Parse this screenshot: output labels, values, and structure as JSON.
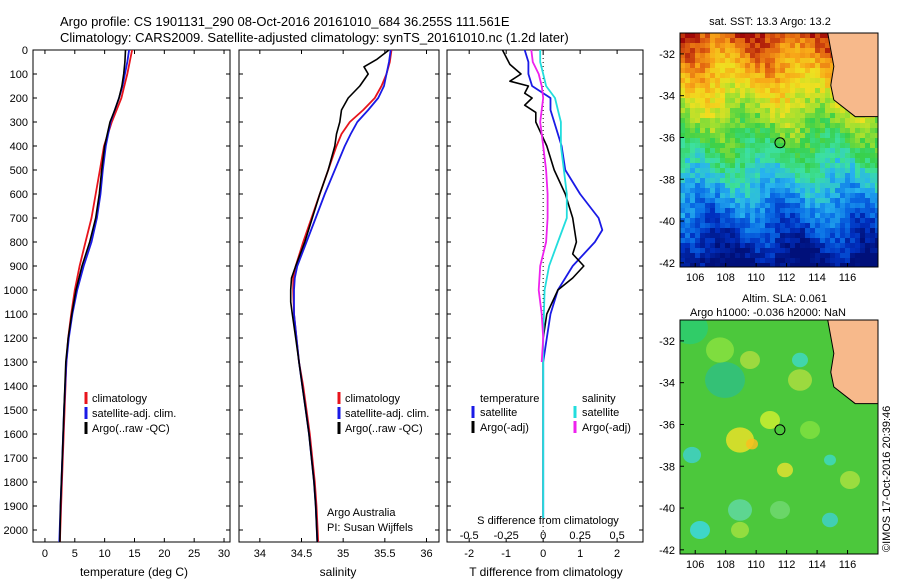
{
  "header": {
    "line1": "Argo profile: CS 1901131_290 08-Oct-2016 20161010_684 36.255S 111.561E",
    "line2": "Climatology: CARS2009. Satellite-adjusted climatology: synTS_20161010.nc (1.2d later)"
  },
  "colors": {
    "climatology": "#e8141c",
    "satellite": "#1a1ae6",
    "argo": "#000000",
    "cyan": "#22dddd",
    "magenta": "#ee22ee",
    "land": "#f7b98b"
  },
  "depth_axis": {
    "ticks": [
      0,
      100,
      200,
      300,
      400,
      500,
      600,
      700,
      800,
      900,
      1000,
      1100,
      1200,
      1300,
      1400,
      1500,
      1600,
      1700,
      1800,
      1900,
      2000
    ],
    "range": [
      0,
      2050
    ],
    "inverted": true
  },
  "chart_data": [
    {
      "id": "temperature",
      "type": "line",
      "xlabel": "temperature (deg C)",
      "xlim": [
        -2,
        31
      ],
      "xticks": [
        0,
        5,
        10,
        15,
        20,
        25,
        30
      ],
      "legend": [
        "climatology",
        "satellite-adj. clim.",
        "Argo(..raw -QC)"
      ],
      "legend_position": "lower-left",
      "series": [
        {
          "name": "climatology",
          "color_key": "climatology",
          "depth": [
            0,
            50,
            100,
            150,
            200,
            250,
            300,
            400,
            500,
            600,
            700,
            800,
            900,
            1000,
            1100,
            1200,
            1300,
            1500,
            1700,
            1900,
            2050
          ],
          "values": [
            14.6,
            14.2,
            13.8,
            13.3,
            12.8,
            12.0,
            11.2,
            9.9,
            9.2,
            8.5,
            7.8,
            6.8,
            5.8,
            5.0,
            4.4,
            3.9,
            3.6,
            3.3,
            3.0,
            2.7,
            2.5
          ]
        },
        {
          "name": "satellite-adj. clim.",
          "color_key": "satellite",
          "depth": [
            0,
            50,
            100,
            150,
            200,
            250,
            300,
            400,
            500,
            600,
            700,
            800,
            900,
            1000,
            1100,
            1200,
            1300,
            1500,
            1700,
            1900,
            2050
          ],
          "values": [
            14.1,
            13.8,
            13.4,
            13.0,
            12.4,
            11.7,
            11.0,
            10.2,
            9.7,
            9.3,
            8.7,
            7.8,
            6.5,
            5.4,
            4.6,
            4.0,
            3.6,
            3.2,
            2.9,
            2.6,
            2.4
          ]
        },
        {
          "name": "Argo(..raw -QC)",
          "color_key": "argo",
          "depth": [
            0,
            50,
            100,
            150,
            200,
            250,
            300,
            400,
            500,
            600,
            700,
            800,
            900,
            1000,
            1100,
            1200,
            1300,
            1500,
            1700,
            1900,
            2050
          ],
          "values": [
            13.5,
            13.4,
            13.2,
            12.9,
            12.4,
            11.7,
            10.9,
            10.0,
            9.5,
            9.1,
            8.5,
            7.5,
            6.2,
            5.2,
            4.5,
            3.9,
            3.5,
            3.2,
            2.9,
            2.6,
            2.5
          ]
        }
      ]
    },
    {
      "id": "salinity",
      "type": "line",
      "xlabel": "salinity",
      "xlim": [
        33.75,
        36.15
      ],
      "xticks": [
        34,
        34.5,
        35,
        35.5,
        36
      ],
      "legend": [
        "climatology",
        "satellite-adj. clim.",
        "Argo(..raw -QC)"
      ],
      "legend_position": "lower-right",
      "annotation": [
        "Argo Australia",
        "PI: Susan Wijffels"
      ],
      "series": [
        {
          "name": "climatology",
          "color_key": "climatology",
          "depth": [
            0,
            50,
            100,
            150,
            200,
            250,
            300,
            350,
            400,
            500,
            600,
            700,
            800,
            900,
            950,
            1000,
            1100,
            1200,
            1300,
            1400,
            1500,
            1600,
            1700,
            1800,
            1900,
            2050
          ],
          "values": [
            35.58,
            35.56,
            35.52,
            35.46,
            35.38,
            35.24,
            35.08,
            34.98,
            34.92,
            34.82,
            34.72,
            34.62,
            34.52,
            34.43,
            34.4,
            34.4,
            34.41,
            34.44,
            34.47,
            34.52,
            34.56,
            34.6,
            34.63,
            34.66,
            34.68,
            34.7
          ]
        },
        {
          "name": "satellite-adj. clim.",
          "color_key": "satellite",
          "depth": [
            0,
            50,
            100,
            150,
            200,
            250,
            300,
            350,
            400,
            500,
            600,
            700,
            800,
            900,
            950,
            1000,
            1100,
            1200,
            1300,
            1400,
            1500,
            1600,
            1700,
            1800,
            1900,
            2050
          ],
          "values": [
            35.57,
            35.55,
            35.52,
            35.49,
            35.42,
            35.3,
            35.17,
            35.09,
            35.02,
            34.9,
            34.78,
            34.67,
            34.56,
            34.45,
            34.42,
            34.41,
            34.41,
            34.44,
            34.47,
            34.51,
            34.55,
            34.59,
            34.62,
            34.65,
            34.67,
            34.69
          ]
        },
        {
          "name": "Argo(..raw -QC)",
          "color_key": "argo",
          "depth": [
            0,
            40,
            70,
            100,
            150,
            200,
            250,
            300,
            350,
            400,
            500,
            600,
            700,
            800,
            900,
            950,
            1000,
            1050,
            1100,
            1200,
            1300,
            1400,
            1500,
            1600,
            1700,
            1800,
            1900,
            2050
          ],
          "values": [
            35.55,
            35.4,
            35.25,
            35.3,
            35.2,
            35.06,
            34.98,
            34.96,
            34.92,
            34.9,
            34.82,
            34.72,
            34.63,
            34.54,
            34.43,
            34.38,
            34.37,
            34.37,
            34.39,
            34.43,
            34.47,
            34.51,
            34.55,
            34.59,
            34.62,
            34.65,
            34.67,
            34.69
          ]
        }
      ]
    },
    {
      "id": "difference",
      "type": "line",
      "xlabel": "T difference from climatology",
      "xlim": [
        -2.6,
        2.7
      ],
      "xticks": [
        -2,
        -1,
        0,
        1,
        2
      ],
      "xticklabels": [
        "-2",
        "-1",
        "0",
        "1",
        "2"
      ],
      "top_axis_label": "S difference from climatology",
      "top_xticks": [
        -0.5,
        -0.25,
        0,
        0.25,
        0.5
      ],
      "top_xticklabels": [
        "-0.5",
        "-0.25",
        "0",
        "0.25",
        "0.5"
      ],
      "legend_temperature_title": "temperature",
      "legend_salinity_title": "salinity",
      "legend": {
        "temperature": [
          "satellite",
          "Argo(-adj)"
        ],
        "salinity": [
          "satellite",
          "Argo(-adj)"
        ]
      },
      "series": [
        {
          "name": "T satellite",
          "color_key": "satellite",
          "depth": [
            0,
            50,
            100,
            150,
            200,
            250,
            300,
            400,
            500,
            600,
            700,
            750,
            800,
            900,
            1000,
            1100,
            1200,
            1300,
            1500,
            1700,
            1900,
            1950
          ],
          "values": [
            -0.5,
            -0.4,
            -0.4,
            -0.3,
            0.2,
            0.2,
            0.3,
            0.5,
            0.6,
            1.0,
            1.5,
            1.6,
            1.4,
            0.8,
            0.4,
            0.2,
            0.1,
            0.0,
            0.0,
            0.0,
            0.0,
            0.0
          ]
        },
        {
          "name": "T Argo(-adj)",
          "color_key": "argo",
          "depth": [
            0,
            30,
            60,
            100,
            130,
            150,
            180,
            200,
            230,
            260,
            300,
            400,
            500,
            600,
            700,
            800,
            850,
            900,
            950,
            1000,
            1100,
            1200,
            1300,
            1500,
            1700,
            1900,
            1950
          ],
          "values": [
            -1.1,
            -1.0,
            -0.9,
            -0.6,
            -0.9,
            -0.4,
            -0.5,
            -0.3,
            -0.5,
            -0.2,
            -0.2,
            0.1,
            0.3,
            0.6,
            0.8,
            0.9,
            0.8,
            1.1,
            0.8,
            0.4,
            0.1,
            0.0,
            0.0,
            0.0,
            0.0,
            0.0,
            0.0
          ]
        },
        {
          "name": "S satellite",
          "color_key": "cyan",
          "depth": [
            0,
            50,
            100,
            150,
            200,
            250,
            300,
            400,
            500,
            600,
            700,
            800,
            900,
            1000,
            1200,
            1400,
            1600,
            1800,
            1950
          ],
          "values": [
            -0.02,
            -0.02,
            0.0,
            0.02,
            0.08,
            0.1,
            0.12,
            0.12,
            0.14,
            0.16,
            0.16,
            0.1,
            0.04,
            0.01,
            0.0,
            0.0,
            0.0,
            0.0,
            0.0
          ]
        },
        {
          "name": "S Argo(-adj)",
          "color_key": "magenta",
          "depth": [
            0,
            50,
            100,
            150,
            200,
            300,
            400,
            500,
            600,
            700,
            800,
            900,
            1000,
            1100,
            1200,
            1300
          ],
          "values": [
            -0.08,
            -0.07,
            -0.03,
            -0.01,
            0.0,
            -0.02,
            0.0,
            0.02,
            0.03,
            0.03,
            0.02,
            -0.02,
            -0.03,
            -0.01,
            0.0,
            -0.01
          ]
        }
      ]
    }
  ],
  "maps": {
    "sst": {
      "title": "sat. SST: 13.3 Argo: 13.2",
      "xticks": [
        "106",
        "108",
        "110",
        "112",
        "114",
        "116"
      ],
      "yticks": [
        "-32",
        "-34",
        "-36",
        "-38",
        "-40",
        "-42"
      ]
    },
    "sla": {
      "title1": "Altim. SLA: 0.061",
      "title2": "Argo h1000: -0.036 h2000: NaN",
      "xticks": [
        "106",
        "108",
        "110",
        "112",
        "114",
        "116"
      ],
      "yticks": [
        "-32",
        "-34",
        "-36",
        "-38",
        "-40",
        "-42"
      ]
    }
  },
  "watermark": "©IMOS 17-Oct-2016 20:39:46"
}
